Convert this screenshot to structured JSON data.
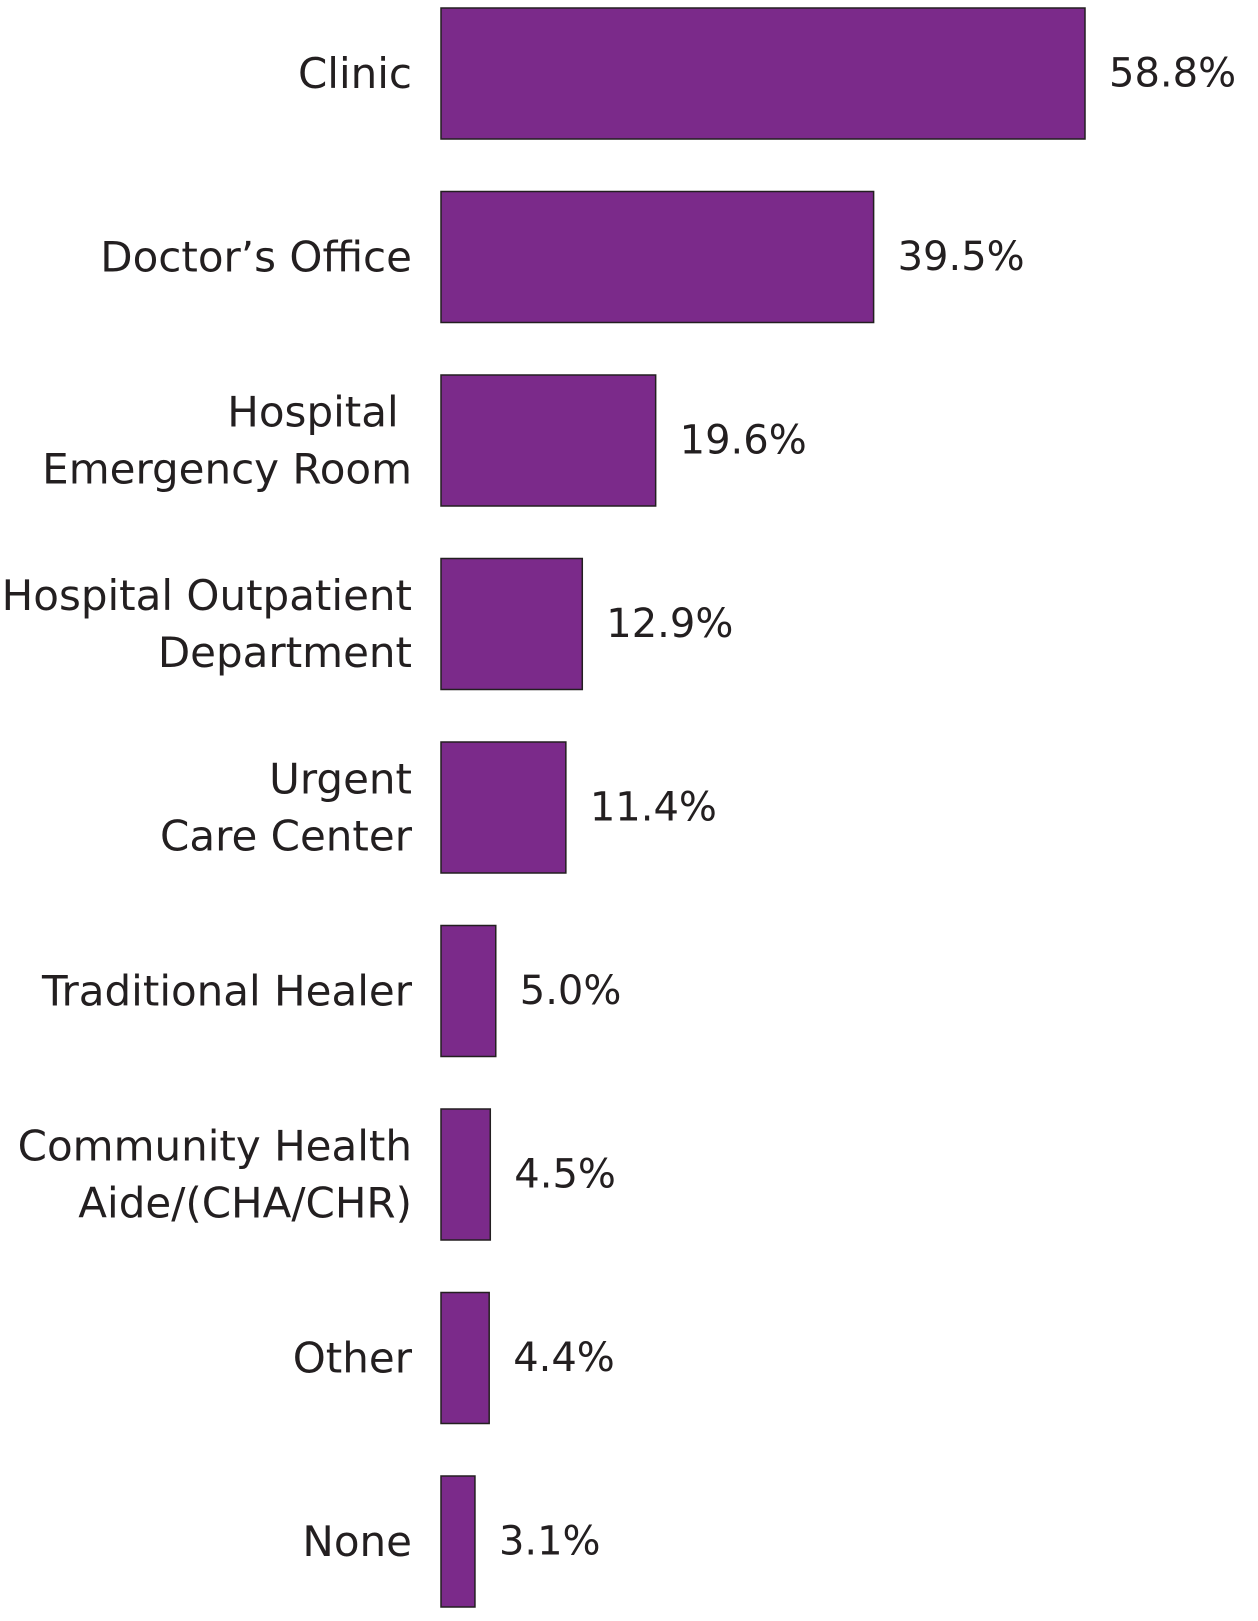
{
  "chart_data": {
    "type": "bar",
    "orientation": "horizontal",
    "categories": [
      "Clinic",
      "Doctor’s Office",
      "Hospital Emergency Room",
      "Hospital Outpatient Department",
      "Urgent Care Center",
      "Traditional Healer",
      "Community Health Aide/(CHA/CHR)",
      "Other",
      "None"
    ],
    "category_lines": [
      [
        "Clinic"
      ],
      [
        "Doctor’s Office"
      ],
      [
        "Hospital ",
        "Emergency Room"
      ],
      [
        "Hospital Outpatient",
        "Department"
      ],
      [
        "Urgent",
        "Care Center"
      ],
      [
        "Traditional Healer"
      ],
      [
        "Community Health",
        "Aide/(CHA/CHR)"
      ],
      [
        "Other"
      ],
      [
        "None"
      ]
    ],
    "values": [
      58.8,
      39.5,
      19.6,
      12.9,
      11.4,
      5.0,
      4.5,
      4.4,
      3.1
    ],
    "data_labels": [
      "58.8%",
      "39.5%",
      "19.6%",
      "12.9%",
      "11.4%",
      "5.0%",
      "4.5%",
      "4.4%",
      "3.1%"
    ],
    "unit": "%",
    "bar_color": "#7b2a8a",
    "title": "",
    "xlabel": "",
    "ylabel": "",
    "xlim": [
      0,
      58.8
    ],
    "grid": false,
    "legend": "none"
  }
}
